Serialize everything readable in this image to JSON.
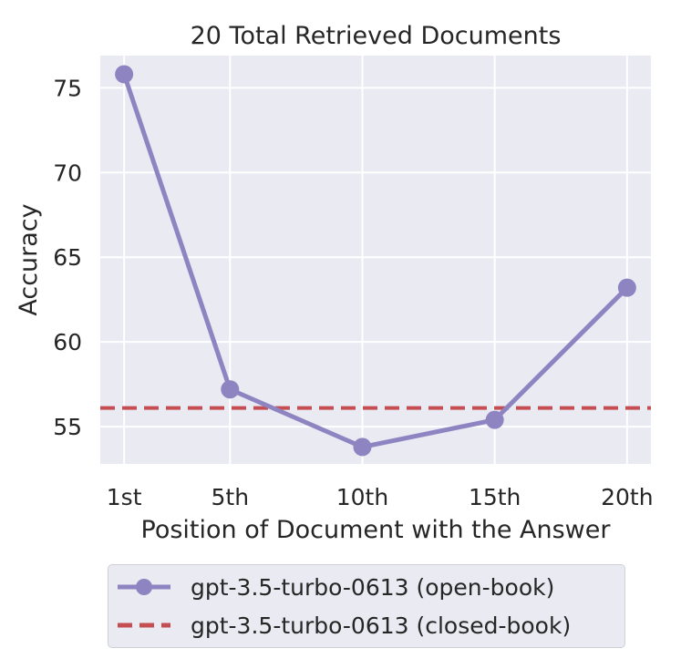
{
  "chart_data": {
    "type": "line",
    "title": "20 Total Retrieved Documents",
    "xlabel": "Position of Document with the Answer",
    "ylabel": "Accuracy",
    "x": [
      1,
      5,
      10,
      15,
      20
    ],
    "x_tick_labels": [
      "1st",
      "5th",
      "10th",
      "15th",
      "20th"
    ],
    "xlim": [
      0.1,
      20.9
    ],
    "ylim": [
      52.8,
      76.9
    ],
    "y_ticks": [
      55,
      60,
      65,
      70,
      75
    ],
    "grid": true,
    "legend_position": "bottom, below plot",
    "series": [
      {
        "name": "gpt-3.5-turbo-0613 (open-book)",
        "style": "solid line with circle markers",
        "color": "#8e84c2",
        "values": [
          75.8,
          57.2,
          53.8,
          55.4,
          63.2
        ]
      },
      {
        "name": "gpt-3.5-turbo-0613 (closed-book)",
        "style": "dashed horizontal line",
        "color": "#c44e52",
        "values": [
          56.1,
          56.1,
          56.1,
          56.1,
          56.1
        ]
      }
    ]
  }
}
